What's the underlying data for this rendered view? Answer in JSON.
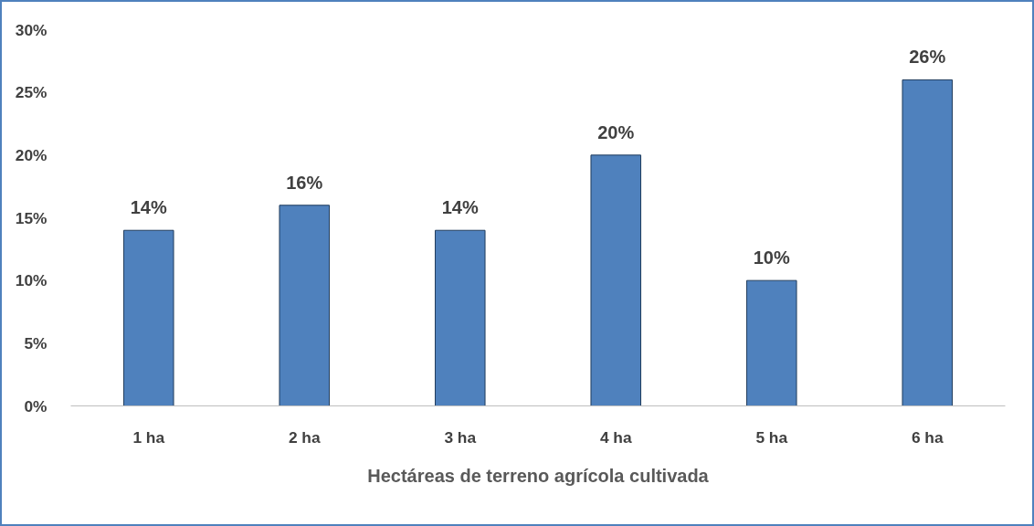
{
  "chart_data": {
    "type": "bar",
    "xlabel": "Hectáreas de terreno agrícola cultivada",
    "categories": [
      "1 ha",
      "2 ha",
      "3 ha",
      "4 ha",
      "5 ha",
      "6 ha"
    ],
    "values": [
      14,
      16,
      14,
      20,
      10,
      26
    ],
    "value_labels": [
      "14%",
      "16%",
      "14%",
      "20%",
      "10%",
      "26%"
    ],
    "color": "#4f81bd",
    "ylim": [
      0,
      30
    ],
    "yticks": [
      {
        "value": 0,
        "label": "0%"
      },
      {
        "value": 5,
        "label": "5%"
      },
      {
        "value": 10,
        "label": "10%"
      },
      {
        "value": 15,
        "label": "15%"
      },
      {
        "value": 20,
        "label": "20%"
      },
      {
        "value": 25,
        "label": "25%"
      },
      {
        "value": 30,
        "label": "30%"
      }
    ],
    "grid": false
  }
}
